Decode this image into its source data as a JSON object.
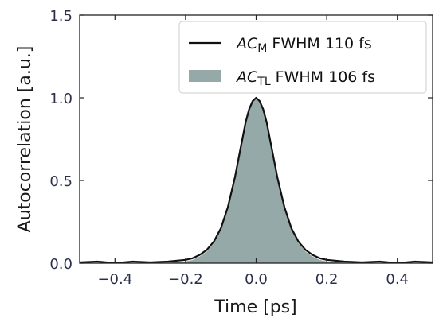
{
  "chart_data": {
    "type": "line",
    "xlabel": "Time [ps]",
    "ylabel": "Autocorrelation [a.u.]",
    "xlim": [
      -0.5,
      0.5
    ],
    "ylim": [
      0.0,
      1.5
    ],
    "x_ticks": [
      -0.4,
      -0.2,
      0.0,
      0.2,
      0.4
    ],
    "x_tick_labels": [
      "−0.4",
      "−0.2",
      "0.0",
      "0.2",
      "0.4"
    ],
    "y_ticks": [
      0.0,
      0.5,
      1.0,
      1.5
    ],
    "y_tick_labels": [
      "0.0",
      "0.5",
      "1.0",
      "1.5"
    ],
    "grid": false,
    "legend_position": "top-right",
    "series": [
      {
        "name_parts": {
          "main": "AC",
          "sub": "M",
          "rest": " FWHM 110 fs"
        },
        "style": "line",
        "color": "#111111",
        "x": [
          -0.5,
          -0.45,
          -0.4,
          -0.35,
          -0.3,
          -0.25,
          -0.2,
          -0.18,
          -0.16,
          -0.14,
          -0.12,
          -0.1,
          -0.08,
          -0.06,
          -0.05,
          -0.04,
          -0.03,
          -0.02,
          -0.01,
          0.0,
          0.01,
          0.02,
          0.03,
          0.04,
          0.05,
          0.06,
          0.08,
          0.1,
          0.12,
          0.14,
          0.16,
          0.18,
          0.2,
          0.25,
          0.3,
          0.35,
          0.4,
          0.45,
          0.5
        ],
        "y": [
          0.005,
          0.01,
          0.0,
          0.01,
          0.005,
          0.01,
          0.02,
          0.03,
          0.05,
          0.08,
          0.13,
          0.21,
          0.34,
          0.52,
          0.63,
          0.74,
          0.85,
          0.93,
          0.98,
          1.0,
          0.98,
          0.93,
          0.85,
          0.74,
          0.63,
          0.52,
          0.34,
          0.21,
          0.13,
          0.08,
          0.05,
          0.03,
          0.02,
          0.01,
          0.005,
          0.01,
          0.0,
          0.01,
          0.005
        ]
      },
      {
        "name_parts": {
          "main": "AC",
          "sub": "TL",
          "rest": " FWHM 106 fs"
        },
        "style": "area",
        "color": "#95aaa8",
        "x": [
          -0.5,
          -0.3,
          -0.2,
          -0.18,
          -0.16,
          -0.14,
          -0.12,
          -0.1,
          -0.08,
          -0.06,
          -0.05,
          -0.04,
          -0.03,
          -0.02,
          -0.01,
          0.0,
          0.01,
          0.02,
          0.03,
          0.04,
          0.05,
          0.06,
          0.08,
          0.1,
          0.12,
          0.14,
          0.16,
          0.18,
          0.2,
          0.3,
          0.5
        ],
        "y": [
          0.0,
          0.0,
          0.01,
          0.02,
          0.04,
          0.07,
          0.12,
          0.2,
          0.33,
          0.51,
          0.62,
          0.73,
          0.84,
          0.93,
          0.98,
          1.0,
          0.98,
          0.93,
          0.84,
          0.73,
          0.62,
          0.51,
          0.33,
          0.2,
          0.12,
          0.07,
          0.04,
          0.02,
          0.01,
          0.0,
          0.0
        ]
      }
    ]
  }
}
